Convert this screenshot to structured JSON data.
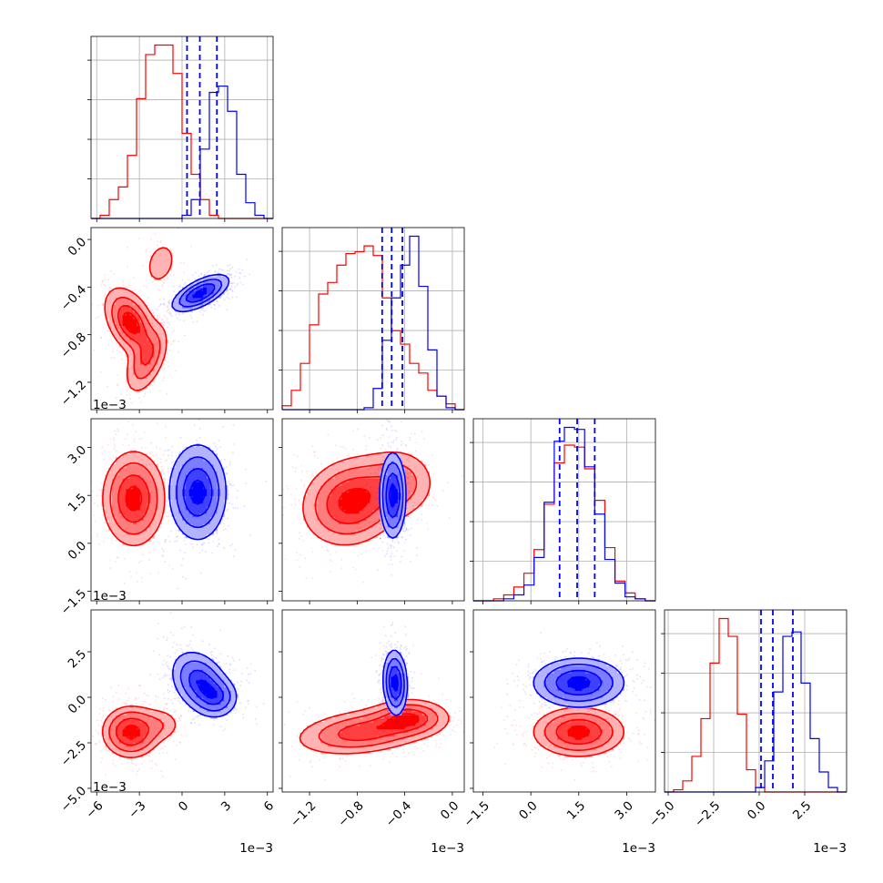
{
  "chart_data": {
    "type": "corner",
    "colors": {
      "posterior_a": "#ff0000",
      "posterior_b": "#0000ff"
    },
    "parameters": [
      {
        "id": "p1",
        "range": [
          -6.4,
          6.4
        ],
        "ticks": [
          -6,
          -3,
          0,
          3,
          6
        ],
        "tick_labels": [
          "−6",
          "−3",
          "0",
          "3",
          "6"
        ],
        "offset": "1e−3"
      },
      {
        "id": "p2",
        "range": [
          -1.43,
          0.1
        ],
        "ticks": [
          -1.2,
          -0.8,
          -0.4,
          0.0
        ],
        "tick_labels": [
          "−1.2",
          "−0.8",
          "−0.4",
          "0.0"
        ],
        "offset": "1e−3"
      },
      {
        "id": "p3",
        "range": [
          -1.8,
          3.9
        ],
        "ticks": [
          -1.5,
          0.0,
          1.5,
          3.0
        ],
        "tick_labels": [
          "−1.5",
          "0.0",
          "1.5",
          "3.0"
        ],
        "offset": "1e−3"
      },
      {
        "id": "p4",
        "range": [
          -5.2,
          4.8
        ],
        "ticks": [
          -5.0,
          -2.5,
          0.0,
          2.5
        ],
        "tick_labels": [
          "−5.0",
          "−2.5",
          "0.0",
          "2.5"
        ],
        "offset": "1e−3"
      }
    ],
    "histograms": [
      {
        "param": 0,
        "bins": [
          -6.4,
          6.4
        ],
        "red": [
          0,
          1,
          6,
          10,
          20,
          38,
          52,
          55,
          55,
          46,
          27,
          14,
          6,
          1,
          0,
          0,
          0,
          0,
          0,
          0
        ],
        "blue": [
          0,
          0,
          0,
          0,
          0,
          0,
          0,
          0,
          0,
          0,
          1,
          6,
          22,
          40,
          42,
          34,
          14,
          5,
          1,
          0
        ],
        "quantiles": [
          0.35,
          1.25,
          2.45
        ]
      },
      {
        "param": 1,
        "bins": [
          -1.43,
          0.1
        ],
        "red": [
          2,
          10,
          24,
          44,
          60,
          66,
          75,
          81,
          82,
          85,
          80,
          58,
          41,
          34,
          24,
          19,
          10,
          7,
          3,
          0
        ],
        "blue": [
          0,
          0,
          0,
          0,
          0,
          0,
          0,
          0,
          0,
          1,
          11,
          36,
          58,
          75,
          90,
          64,
          31,
          7,
          1,
          0
        ],
        "quantiles": [
          -0.59,
          -0.51,
          -0.42
        ]
      },
      {
        "param": 2,
        "bins": [
          -1.8,
          3.9
        ],
        "red": [
          0,
          0,
          1,
          3,
          7,
          14,
          26,
          49,
          70,
          79,
          78,
          67,
          51,
          27,
          10,
          4,
          1,
          0
        ],
        "blue": [
          0,
          0,
          0,
          1,
          3,
          8,
          22,
          50,
          81,
          88,
          87,
          68,
          44,
          21,
          9,
          2,
          1,
          0
        ],
        "quantiles": [
          0.9,
          1.45,
          2.0
        ]
      },
      {
        "param": 3,
        "bins": [
          -5.2,
          4.8
        ],
        "red": [
          0,
          1,
          5,
          16,
          33,
          58,
          78,
          70,
          35,
          10,
          2,
          0,
          0,
          0,
          0,
          0,
          0,
          0,
          0,
          0
        ],
        "blue": [
          0,
          0,
          0,
          0,
          0,
          0,
          0,
          0,
          0,
          0,
          2,
          14,
          45,
          70,
          72,
          49,
          24,
          9,
          2,
          0
        ],
        "quantiles": [
          0.1,
          0.75,
          1.85
        ]
      }
    ],
    "pairs": [
      {
        "x": 0,
        "y": 1,
        "red": {
          "components": [
            {
              "mean": [
                -3.6,
                -0.7
              ],
              "cov": [
                [
                  0.7,
                  -0.05
                ],
                [
                  -0.05,
                  0.018
                ]
              ],
              "w": 0.6
            },
            {
              "mean": [
                -2.5,
                -1.0
              ],
              "cov": [
                [
                  0.5,
                  0.05
                ],
                [
                  0.05,
                  0.02
                ]
              ],
              "w": 0.3
            },
            {
              "mean": [
                -1.5,
                -0.2
              ],
              "cov": [
                [
                  0.7,
                  0.03
                ],
                [
                  0.03,
                  0.02
                ]
              ],
              "w": 0.1
            }
          ]
        },
        "blue": {
          "components": [
            {
              "mean": [
                1.3,
                -0.45
              ],
              "cov": [
                [
                  1.0,
                  0.05
                ],
                [
                  0.05,
                  0.006
                ]
              ],
              "w": 1.0
            }
          ]
        }
      },
      {
        "x": 0,
        "y": 2,
        "red": {
          "components": [
            {
              "mean": [
                -3.4,
                1.4
              ],
              "cov": [
                [
                  1.2,
                  0.0
                ],
                [
                  0.0,
                  0.55
                ]
              ],
              "w": 1.0
            }
          ]
        },
        "blue": {
          "components": [
            {
              "mean": [
                1.1,
                1.6
              ],
              "cov": [
                [
                  1.0,
                  0.0
                ],
                [
                  0.0,
                  0.55
                ]
              ],
              "w": 1.0
            }
          ]
        }
      },
      {
        "x": 1,
        "y": 2,
        "red": {
          "components": [
            {
              "mean": [
                -0.85,
                1.3
              ],
              "cov": [
                [
                  0.045,
                  0.02
                ],
                [
                  0.02,
                  0.5
                ]
              ],
              "w": 0.75
            },
            {
              "mean": [
                -0.45,
                1.9
              ],
              "cov": [
                [
                  0.03,
                  0.0
                ],
                [
                  0.0,
                  0.35
                ]
              ],
              "w": 0.25
            }
          ]
        },
        "blue": {
          "components": [
            {
              "mean": [
                -0.5,
                1.5
              ],
              "cov": [
                [
                  0.003,
                  0.0
                ],
                [
                  0.0,
                  0.45
                ]
              ],
              "w": 1.0
            }
          ]
        }
      },
      {
        "x": 0,
        "y": 3,
        "red": {
          "components": [
            {
              "mean": [
                -3.6,
                -1.9
              ],
              "cov": [
                [
                  1.0,
                  0.0
                ],
                [
                  0.0,
                  0.5
                ]
              ],
              "w": 0.85
            },
            {
              "mean": [
                -1.5,
                -1.5
              ],
              "cov": [
                [
                  0.8,
                  0.0
                ],
                [
                  0.0,
                  0.3
                ]
              ],
              "w": 0.15
            }
          ]
        },
        "blue": {
          "components": [
            {
              "mean": [
                1.3,
                0.8
              ],
              "cov": [
                [
                  1.1,
                  -0.3
                ],
                [
                  -0.3,
                  0.8
                ]
              ],
              "w": 0.8
            },
            {
              "mean": [
                2.5,
                0.0
              ],
              "cov": [
                [
                  0.6,
                  0.0
                ],
                [
                  0.0,
                  0.3
                ]
              ],
              "w": 0.2
            }
          ]
        }
      },
      {
        "x": 1,
        "y": 3,
        "red": {
          "components": [
            {
              "mean": [
                -0.75,
                -1.9
              ],
              "cov": [
                [
                  0.09,
                  0.06
                ],
                [
                  0.06,
                  0.45
                ]
              ],
              "w": 0.7
            },
            {
              "mean": [
                -0.35,
                -1.1
              ],
              "cov": [
                [
                  0.03,
                  0.0
                ],
                [
                  0.0,
                  0.3
                ]
              ],
              "w": 0.3
            }
          ]
        },
        "blue": {
          "components": [
            {
              "mean": [
                -0.48,
                0.8
              ],
              "cov": [
                [
                  0.0025,
                  -0.004
                ],
                [
                  -0.004,
                  0.8
                ]
              ],
              "w": 1.0
            }
          ]
        }
      },
      {
        "x": 2,
        "y": 3,
        "red": {
          "components": [
            {
              "mean": [
                1.5,
                -1.9
              ],
              "cov": [
                [
                  0.5,
                  0.0
                ],
                [
                  0.0,
                  0.45
                ]
              ],
              "w": 1.0
            }
          ]
        },
        "blue": {
          "components": [
            {
              "mean": [
                1.5,
                0.8
              ],
              "cov": [
                [
                  0.5,
                  0.0
                ],
                [
                  0.0,
                  0.45
                ]
              ],
              "w": 1.0
            }
          ]
        }
      }
    ]
  }
}
